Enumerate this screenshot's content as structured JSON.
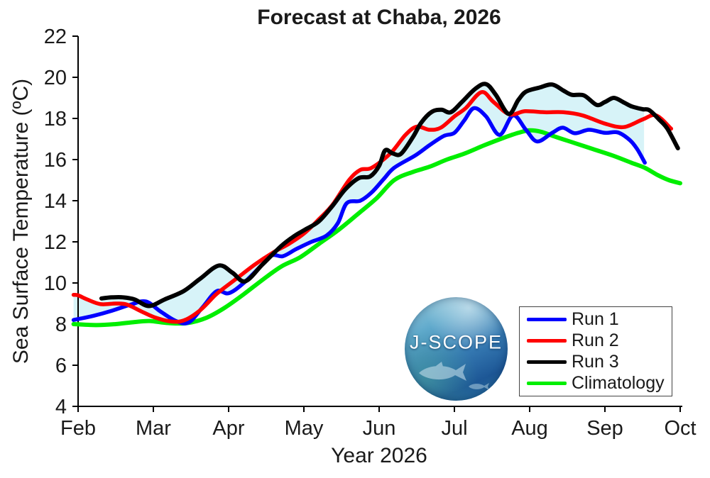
{
  "title": "Forecast at Chaba, 2026",
  "xlabel": "Year 2026",
  "ylabel": "Sea Surface Temperature (ºC)",
  "logo": {
    "text": "J-SCOPE"
  },
  "chart_data": {
    "type": "line",
    "title": "Forecast at Chaba, 2026",
    "xlabel": "Year 2026",
    "ylabel": "Sea Surface Temperature (ºC)",
    "x_unit": "month of 2026",
    "xlim": [
      2,
      10
    ],
    "ylim": [
      4,
      22
    ],
    "grid": false,
    "x_tick_months": [
      2,
      3,
      4,
      5,
      6,
      7,
      8,
      9,
      10
    ],
    "x_tick_labels": [
      "Feb",
      "Mar",
      "Apr",
      "May",
      "Jun",
      "Jul",
      "Aug",
      "Sep",
      "Oct"
    ],
    "y_ticks": [
      4,
      6,
      8,
      10,
      12,
      14,
      16,
      18,
      20,
      22
    ],
    "axis_color": "#000000",
    "envelope": {
      "description": "shaded spread between min and max of Run 1-3",
      "fill_color": "#d7f3f8"
    },
    "legend": {
      "position": "bottom-right",
      "labels": [
        "Run 1",
        "Run 2",
        "Run 3",
        "Climatology"
      ]
    },
    "series": [
      {
        "name": "Run 1",
        "color": "#0000ff",
        "width": 5.5,
        "in_envelope": true,
        "points": [
          [
            1.94,
            8.2
          ],
          [
            2.2,
            8.4
          ],
          [
            2.45,
            8.65
          ],
          [
            2.7,
            8.95
          ],
          [
            2.9,
            9.1
          ],
          [
            3.1,
            8.6
          ],
          [
            3.3,
            8.15
          ],
          [
            3.47,
            8.08
          ],
          [
            3.65,
            8.8
          ],
          [
            3.84,
            9.6
          ],
          [
            4.0,
            9.5
          ],
          [
            4.2,
            10.0
          ],
          [
            4.45,
            10.9
          ],
          [
            4.58,
            11.35
          ],
          [
            4.72,
            11.3
          ],
          [
            4.9,
            11.65
          ],
          [
            5.1,
            12.0
          ],
          [
            5.3,
            12.3
          ],
          [
            5.45,
            12.9
          ],
          [
            5.57,
            13.88
          ],
          [
            5.75,
            14.0
          ],
          [
            5.9,
            14.4
          ],
          [
            6.06,
            15.05
          ],
          [
            6.2,
            15.6
          ],
          [
            6.48,
            16.2
          ],
          [
            6.67,
            16.7
          ],
          [
            6.86,
            17.15
          ],
          [
            7.0,
            17.3
          ],
          [
            7.13,
            17.9
          ],
          [
            7.26,
            18.5
          ],
          [
            7.42,
            18.1
          ],
          [
            7.6,
            17.2
          ],
          [
            7.78,
            18.15
          ],
          [
            7.95,
            17.45
          ],
          [
            8.1,
            16.88
          ],
          [
            8.3,
            17.3
          ],
          [
            8.44,
            17.55
          ],
          [
            8.6,
            17.28
          ],
          [
            8.79,
            17.45
          ],
          [
            9.0,
            17.3
          ],
          [
            9.17,
            17.32
          ],
          [
            9.33,
            16.95
          ],
          [
            9.43,
            16.5
          ],
          [
            9.53,
            15.85
          ]
        ]
      },
      {
        "name": "Run 2",
        "color": "#ff0000",
        "width": 5.5,
        "in_envelope": true,
        "points": [
          [
            1.94,
            9.42
          ],
          [
            2.0,
            9.4
          ],
          [
            2.12,
            9.2
          ],
          [
            2.3,
            8.97
          ],
          [
            2.5,
            9.0
          ],
          [
            2.65,
            8.95
          ],
          [
            2.85,
            8.6
          ],
          [
            3.04,
            8.3
          ],
          [
            3.25,
            8.12
          ],
          [
            3.42,
            8.2
          ],
          [
            3.63,
            8.7
          ],
          [
            3.82,
            9.4
          ],
          [
            3.92,
            9.7
          ],
          [
            4.1,
            10.2
          ],
          [
            4.35,
            10.9
          ],
          [
            4.6,
            11.5
          ],
          [
            4.8,
            11.9
          ],
          [
            5.0,
            12.4
          ],
          [
            5.2,
            13.1
          ],
          [
            5.38,
            13.8
          ],
          [
            5.6,
            15.0
          ],
          [
            5.75,
            15.5
          ],
          [
            5.9,
            15.6
          ],
          [
            6.15,
            16.3
          ],
          [
            6.35,
            17.2
          ],
          [
            6.5,
            17.6
          ],
          [
            6.67,
            17.45
          ],
          [
            6.82,
            17.55
          ],
          [
            7.0,
            18.1
          ],
          [
            7.15,
            18.5
          ],
          [
            7.36,
            19.28
          ],
          [
            7.52,
            18.8
          ],
          [
            7.73,
            18.2
          ],
          [
            7.94,
            18.35
          ],
          [
            8.2,
            18.3
          ],
          [
            8.45,
            18.3
          ],
          [
            8.7,
            18.15
          ],
          [
            9.0,
            17.75
          ],
          [
            9.25,
            17.58
          ],
          [
            9.5,
            17.95
          ],
          [
            9.68,
            18.15
          ],
          [
            9.88,
            17.5
          ]
        ]
      },
      {
        "name": "Run 3",
        "color": "#000000",
        "width": 6,
        "in_envelope": true,
        "points": [
          [
            2.31,
            9.25
          ],
          [
            2.45,
            9.3
          ],
          [
            2.6,
            9.3
          ],
          [
            2.75,
            9.2
          ],
          [
            2.94,
            8.88
          ],
          [
            3.15,
            9.2
          ],
          [
            3.4,
            9.6
          ],
          [
            3.62,
            10.2
          ],
          [
            3.87,
            10.85
          ],
          [
            4.05,
            10.5
          ],
          [
            4.22,
            10.08
          ],
          [
            4.45,
            10.9
          ],
          [
            4.7,
            11.8
          ],
          [
            4.88,
            12.3
          ],
          [
            5.02,
            12.6
          ],
          [
            5.2,
            13.0
          ],
          [
            5.38,
            13.75
          ],
          [
            5.55,
            14.55
          ],
          [
            5.73,
            15.1
          ],
          [
            5.88,
            15.18
          ],
          [
            6.0,
            15.7
          ],
          [
            6.08,
            16.45
          ],
          [
            6.18,
            16.3
          ],
          [
            6.29,
            16.28
          ],
          [
            6.45,
            17.1
          ],
          [
            6.56,
            17.8
          ],
          [
            6.7,
            18.32
          ],
          [
            6.83,
            18.42
          ],
          [
            6.95,
            18.3
          ],
          [
            7.1,
            18.8
          ],
          [
            7.28,
            19.45
          ],
          [
            7.42,
            19.67
          ],
          [
            7.55,
            19.15
          ],
          [
            7.72,
            18.22
          ],
          [
            7.85,
            18.9
          ],
          [
            7.95,
            19.3
          ],
          [
            8.13,
            19.5
          ],
          [
            8.3,
            19.65
          ],
          [
            8.45,
            19.35
          ],
          [
            8.56,
            19.15
          ],
          [
            8.72,
            19.12
          ],
          [
            8.89,
            18.66
          ],
          [
            9.0,
            18.8
          ],
          [
            9.12,
            19.0
          ],
          [
            9.25,
            18.78
          ],
          [
            9.36,
            18.58
          ],
          [
            9.5,
            18.45
          ],
          [
            9.59,
            18.4
          ],
          [
            9.72,
            17.95
          ],
          [
            9.83,
            17.5
          ],
          [
            9.97,
            16.55
          ]
        ]
      },
      {
        "name": "Climatology",
        "color": "#00ee00",
        "width": 6,
        "in_envelope": false,
        "points": [
          [
            1.94,
            8.0
          ],
          [
            2.25,
            7.95
          ],
          [
            2.5,
            8.0
          ],
          [
            2.75,
            8.1
          ],
          [
            2.95,
            8.15
          ],
          [
            3.2,
            8.05
          ],
          [
            3.45,
            8.05
          ],
          [
            3.7,
            8.3
          ],
          [
            3.95,
            8.8
          ],
          [
            4.2,
            9.45
          ],
          [
            4.45,
            10.15
          ],
          [
            4.7,
            10.8
          ],
          [
            4.95,
            11.25
          ],
          [
            5.2,
            11.9
          ],
          [
            5.45,
            12.55
          ],
          [
            5.7,
            13.3
          ],
          [
            5.96,
            14.1
          ],
          [
            6.2,
            15.0
          ],
          [
            6.45,
            15.4
          ],
          [
            6.67,
            15.65
          ],
          [
            6.9,
            16.0
          ],
          [
            7.14,
            16.3
          ],
          [
            7.4,
            16.7
          ],
          [
            7.65,
            17.05
          ],
          [
            7.85,
            17.3
          ],
          [
            8.0,
            17.42
          ],
          [
            8.15,
            17.35
          ],
          [
            8.35,
            17.1
          ],
          [
            8.6,
            16.8
          ],
          [
            8.85,
            16.5
          ],
          [
            9.1,
            16.2
          ],
          [
            9.35,
            15.85
          ],
          [
            9.53,
            15.6
          ],
          [
            9.7,
            15.25
          ],
          [
            9.85,
            15.0
          ],
          [
            10.0,
            14.85
          ]
        ]
      }
    ]
  }
}
